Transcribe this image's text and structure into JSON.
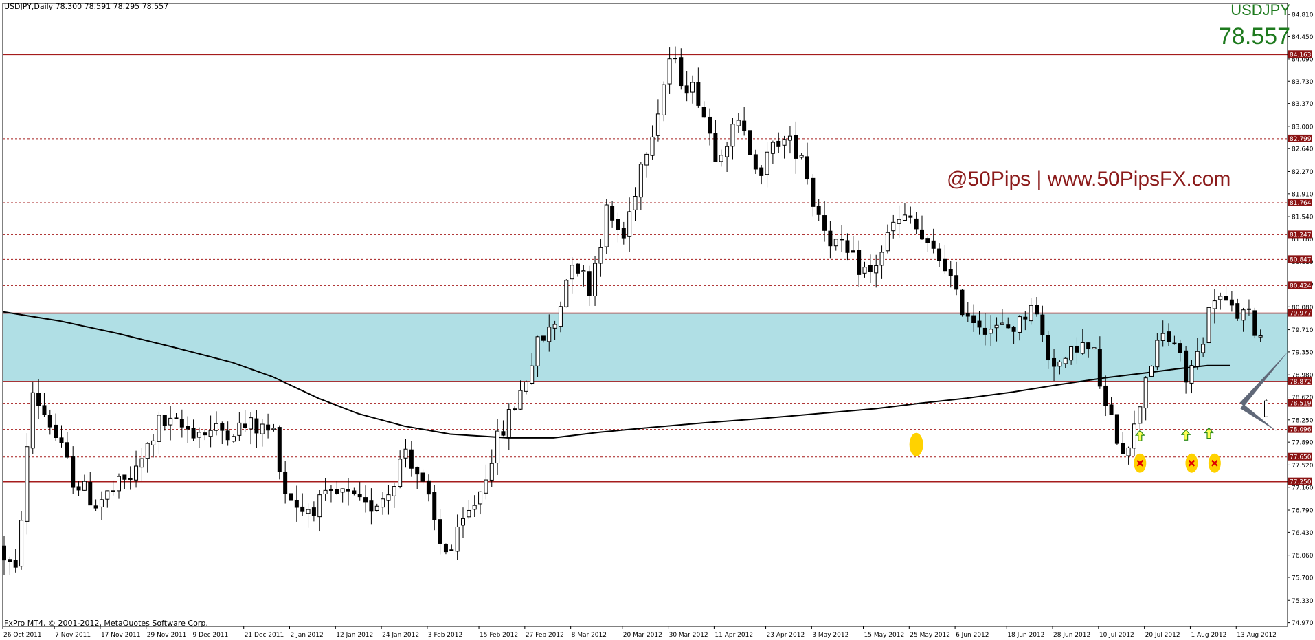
{
  "header": {
    "info": "USDJPY,Daily  78.300 78.591 78.295 78.557",
    "symbol": "USDJPY",
    "last_price": "78.557",
    "watermark": "@50Pips | www.50PipsFX.com",
    "copyright": "FxPro MT4, © 2001-2012, MetaQuotes Software Corp."
  },
  "colors": {
    "background": "#ffffff",
    "axis": "#000000",
    "zone_fill": "#b0dfe5",
    "level_line": "#a51c1c",
    "label_bg": "#8b1313",
    "label_text": "#ffffff",
    "candle": "#000000",
    "moving_average": "#000000",
    "marker_yellow": "#ffd200",
    "marker_cross": "#e00000",
    "arrow_fill": "#ffff55",
    "arrow_stroke": "#2a8a1a",
    "wedge": "#606878"
  },
  "chart_data": {
    "type": "candlestick",
    "title": "USDJPY,Daily",
    "ylim": [
      74.91,
      84.99
    ],
    "y_ticks": [
      "84.810",
      "84.450",
      "84.090",
      "83.730",
      "83.370",
      "83.000",
      "82.640",
      "82.270",
      "81.910",
      "81.540",
      "81.180",
      "80.810",
      "80.450",
      "80.080",
      "79.710",
      "79.350",
      "78.980",
      "78.620",
      "78.250",
      "77.890",
      "77.520",
      "77.160",
      "76.790",
      "76.430",
      "76.060",
      "75.700",
      "75.330",
      "74.970"
    ],
    "x_labels": [
      {
        "i": 0,
        "label": "26 Oct 2011"
      },
      {
        "i": 9,
        "label": "7 Nov 2011"
      },
      {
        "i": 17,
        "label": "17 Nov 2011"
      },
      {
        "i": 25,
        "label": "29 Nov 2011"
      },
      {
        "i": 33,
        "label": "9 Dec 2011"
      },
      {
        "i": 42,
        "label": "21 Dec 2011"
      },
      {
        "i": 50,
        "label": "2 Jan 2012"
      },
      {
        "i": 58,
        "label": "12 Jan 2012"
      },
      {
        "i": 66,
        "label": "24 Jan 2012"
      },
      {
        "i": 74,
        "label": "3 Feb 2012"
      },
      {
        "i": 83,
        "label": "15 Feb 2012"
      },
      {
        "i": 91,
        "label": "27 Feb 2012"
      },
      {
        "i": 99,
        "label": "8 Mar 2012"
      },
      {
        "i": 108,
        "label": "20 Mar 2012"
      },
      {
        "i": 116,
        "label": "30 Mar 2012"
      },
      {
        "i": 124,
        "label": "11 Apr 2012"
      },
      {
        "i": 133,
        "label": "23 Apr 2012"
      },
      {
        "i": 141,
        "label": "3 May 2012"
      },
      {
        "i": 150,
        "label": "15 May 2012"
      },
      {
        "i": 158,
        "label": "25 May 2012"
      },
      {
        "i": 166,
        "label": "6 Jun 2012"
      },
      {
        "i": 175,
        "label": "18 Jun 2012"
      },
      {
        "i": 183,
        "label": "28 Jun 2012"
      },
      {
        "i": 191,
        "label": "10 Jul 2012"
      },
      {
        "i": 199,
        "label": "20 Jul 2012"
      },
      {
        "i": 207,
        "label": "1 Aug 2012"
      },
      {
        "i": 215,
        "label": "13 Aug 2012"
      }
    ],
    "levels": [
      {
        "value": 84.163,
        "label": "84.163",
        "style": "solid"
      },
      {
        "value": 82.799,
        "label": "82.799",
        "style": "dashed"
      },
      {
        "value": 81.764,
        "label": "81.764",
        "style": "dashed"
      },
      {
        "value": 81.247,
        "label": "81.247",
        "style": "dashed"
      },
      {
        "value": 80.847,
        "label": "80.847",
        "style": "dashed"
      },
      {
        "value": 80.424,
        "label": "80.424",
        "style": "dashed"
      },
      {
        "value": 79.977,
        "label": "79.977",
        "style": "solid"
      },
      {
        "value": 78.872,
        "label": "78.872",
        "style": "solid"
      },
      {
        "value": 78.519,
        "label": "78.519",
        "style": "dashed"
      },
      {
        "value": 78.096,
        "label": "78.096",
        "style": "dashed"
      },
      {
        "value": 77.65,
        "label": "77.650",
        "style": "dashed"
      },
      {
        "value": 77.25,
        "label": "77.250",
        "style": "solid"
      }
    ],
    "zone": {
      "from": 78.872,
      "to": 79.977
    },
    "moving_average": [
      [
        0,
        80.0
      ],
      [
        10,
        79.85
      ],
      [
        20,
        79.65
      ],
      [
        30,
        79.42
      ],
      [
        40,
        79.18
      ],
      [
        47,
        78.95
      ],
      [
        55,
        78.6
      ],
      [
        62,
        78.35
      ],
      [
        70,
        78.15
      ],
      [
        78,
        78.02
      ],
      [
        88,
        77.96
      ],
      [
        96,
        77.96
      ],
      [
        104,
        78.05
      ],
      [
        112,
        78.12
      ],
      [
        122,
        78.2
      ],
      [
        132,
        78.27
      ],
      [
        142,
        78.35
      ],
      [
        152,
        78.43
      ],
      [
        160,
        78.52
      ],
      [
        168,
        78.6
      ],
      [
        176,
        78.7
      ],
      [
        184,
        78.82
      ],
      [
        192,
        78.93
      ],
      [
        200,
        79.02
      ],
      [
        205,
        79.08
      ],
      [
        210,
        79.13
      ],
      [
        214,
        79.13
      ]
    ],
    "markers": {
      "circles": [
        {
          "i": 159,
          "price": 77.85
        }
      ],
      "crosses": [
        {
          "i": 198,
          "price": 77.55
        },
        {
          "i": 207,
          "price": 77.55
        },
        {
          "i": 211,
          "price": 77.55
        }
      ],
      "up_arrows": [
        {
          "i": 198,
          "price": 77.99
        },
        {
          "i": 206,
          "price": 78.0
        },
        {
          "i": 210,
          "price": 78.03
        }
      ]
    },
    "wedge": [
      {
        "from": [
          216,
          78.5
        ],
        "to": [
          224,
          79.35
        ]
      },
      {
        "from": [
          216,
          78.47
        ],
        "to": [
          222,
          78.07
        ]
      }
    ],
    "anchors": [
      [
        0,
        76.2
      ],
      [
        1,
        76.05
      ],
      [
        3,
        75.75
      ],
      [
        6,
        78.7
      ],
      [
        9,
        78.2
      ],
      [
        13,
        77.3
      ],
      [
        17,
        76.9
      ],
      [
        20,
        77.1
      ],
      [
        24,
        77.4
      ],
      [
        28,
        78.2
      ],
      [
        36,
        78.05
      ],
      [
        44,
        78.15
      ],
      [
        48,
        78.05
      ],
      [
        50,
        77.1
      ],
      [
        53,
        76.8
      ],
      [
        56,
        76.9
      ],
      [
        60,
        77.05
      ],
      [
        64,
        76.8
      ],
      [
        68,
        77.1
      ],
      [
        71,
        77.8
      ],
      [
        73,
        77.4
      ],
      [
        75,
        76.9
      ],
      [
        77,
        76.25
      ],
      [
        79,
        76.15
      ],
      [
        81,
        76.55
      ],
      [
        84,
        77.1
      ],
      [
        86,
        77.7
      ],
      [
        88,
        78.1
      ],
      [
        91,
        78.7
      ],
      [
        94,
        79.45
      ],
      [
        97,
        79.8
      ],
      [
        100,
        80.9
      ],
      [
        103,
        80.4
      ],
      [
        106,
        81.6
      ],
      [
        109,
        81.2
      ],
      [
        112,
        82.4
      ],
      [
        115,
        83.3
      ],
      [
        117,
        84.1
      ],
      [
        119,
        83.8
      ],
      [
        122,
        83.5
      ],
      [
        125,
        82.6
      ],
      [
        129,
        83.0
      ],
      [
        133,
        82.3
      ],
      [
        136,
        82.8
      ],
      [
        140,
        82.6
      ],
      [
        142,
        81.8
      ],
      [
        145,
        81.2
      ],
      [
        149,
        80.8
      ],
      [
        152,
        80.6
      ],
      [
        156,
        81.4
      ],
      [
        159,
        81.5
      ],
      [
        162,
        81.0
      ],
      [
        165,
        80.8
      ],
      [
        167,
        80.2
      ],
      [
        170,
        79.9
      ],
      [
        174,
        79.7
      ],
      [
        178,
        79.8
      ],
      [
        180,
        80.2
      ],
      [
        183,
        79.3
      ],
      [
        186,
        79.1
      ],
      [
        188,
        79.5
      ],
      [
        191,
        79.3
      ],
      [
        193,
        78.4
      ],
      [
        196,
        77.8
      ],
      [
        198,
        78.1
      ],
      [
        200,
        79.0
      ],
      [
        203,
        79.6
      ],
      [
        205,
        79.5
      ],
      [
        207,
        78.9
      ],
      [
        209,
        79.3
      ],
      [
        212,
        80.3
      ],
      [
        215,
        80.0
      ],
      [
        218,
        79.9
      ],
      [
        222,
        79.3
      ]
    ],
    "candles": []
  }
}
